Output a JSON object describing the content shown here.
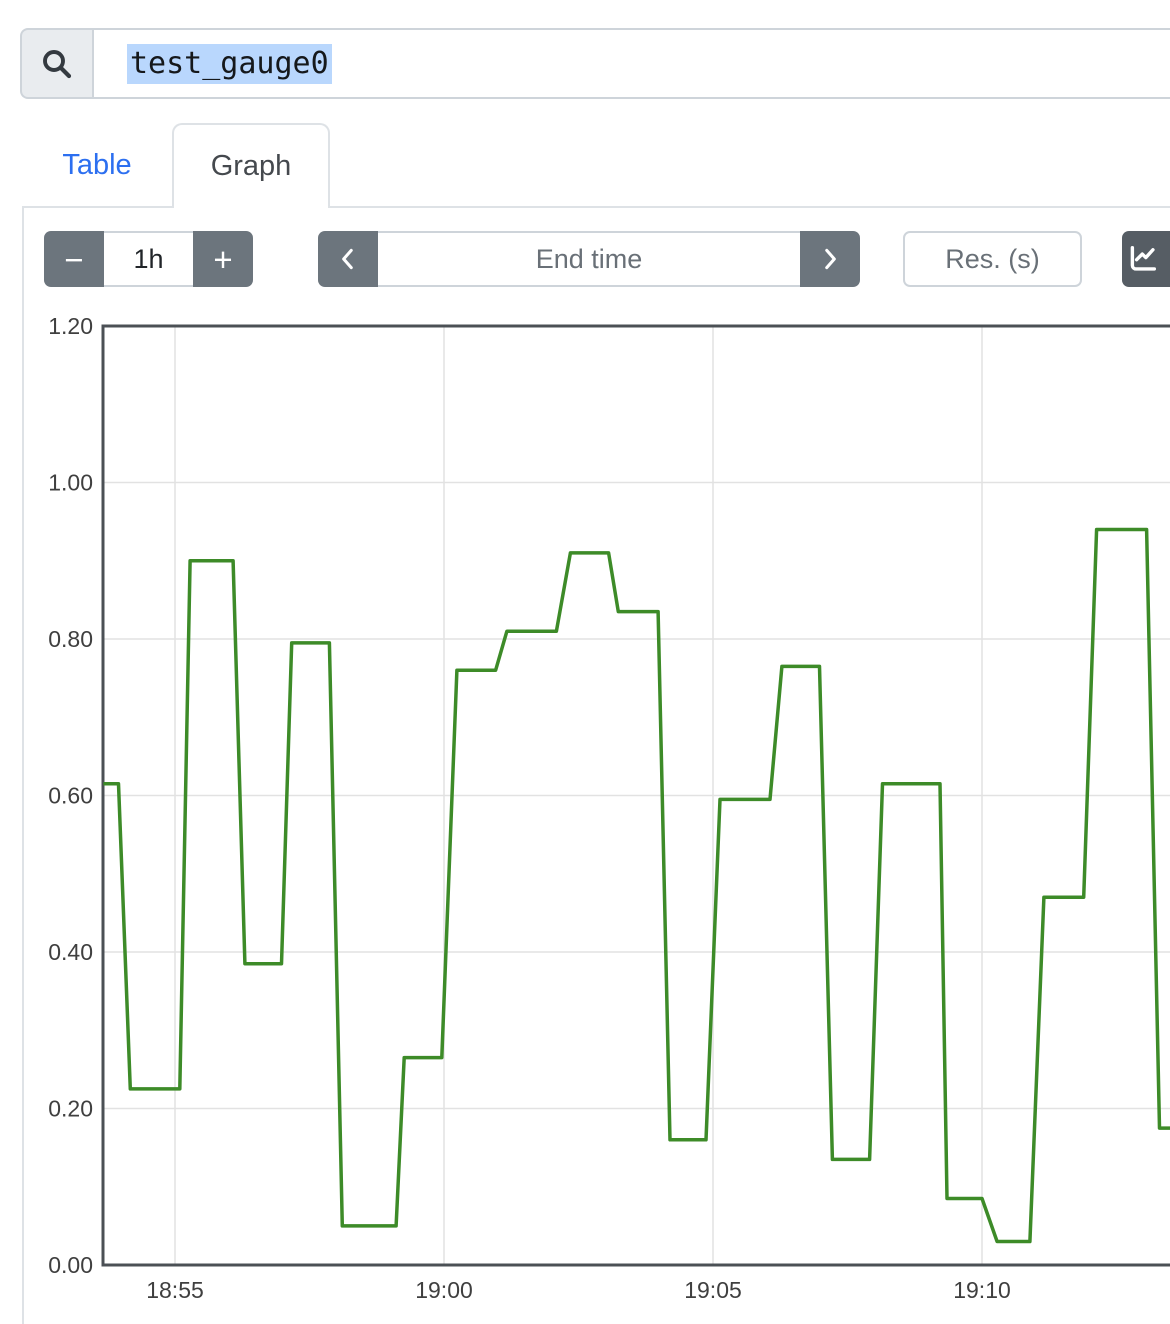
{
  "search": {
    "value": "test_gauge0",
    "icon": "magnifier",
    "selection_color": "#b9d7fd"
  },
  "tabs": [
    {
      "label": "Table",
      "active": false
    },
    {
      "label": "Graph",
      "active": true
    }
  ],
  "toolbar": {
    "range_group": {
      "decrease_label": "−",
      "value": "1h",
      "increase_label": "+"
    },
    "time_group": {
      "prev_icon": "chevron-left",
      "placeholder": "End time",
      "next_icon": "chevron-right"
    },
    "res_input": {
      "placeholder": "Res. (s)"
    },
    "chart_button_icon": "line-chart"
  },
  "colors": {
    "link_blue": "#2c6ff0",
    "button_gray": "#6c757d",
    "button_dark": "#565d64",
    "series_green": "#3d8b28",
    "input_border": "#ced4da",
    "panel_border": "#dee2e6",
    "grid_line": "#e2e2e2",
    "axis_frame": "#4b5055",
    "tick_text": "#3f3f3f",
    "selection_blue": "#b9d7fd"
  },
  "chart_data": {
    "type": "line",
    "title": "",
    "xlabel": "",
    "ylabel": "",
    "grid": true,
    "legend_position": "none",
    "ylim": [
      0.0,
      1.2
    ],
    "x_unit": "minutes_after_18:50",
    "xlim": [
      3.67,
      23.6
    ],
    "y_ticks": [
      {
        "v": 0.0,
        "label": "0.00"
      },
      {
        "v": 0.2,
        "label": "0.20"
      },
      {
        "v": 0.4,
        "label": "0.40"
      },
      {
        "v": 0.6,
        "label": "0.60"
      },
      {
        "v": 0.8,
        "label": "0.80"
      },
      {
        "v": 1.0,
        "label": "1.00"
      },
      {
        "v": 1.2,
        "label": "1.20"
      }
    ],
    "x_ticks": [
      {
        "t": 5,
        "label": "18:55"
      },
      {
        "t": 10,
        "label": "19:00"
      },
      {
        "t": 15,
        "label": "19:05"
      },
      {
        "t": 20,
        "label": "19:10"
      }
    ],
    "series": [
      {
        "name": "test_gauge0",
        "color": "#3d8b28",
        "points": [
          [
            3.67,
            0.615
          ],
          [
            3.95,
            0.615
          ],
          [
            4.17,
            0.225
          ],
          [
            5.09,
            0.225
          ],
          [
            5.28,
            0.9
          ],
          [
            6.08,
            0.9
          ],
          [
            6.3,
            0.385
          ],
          [
            6.98,
            0.385
          ],
          [
            7.17,
            0.795
          ],
          [
            7.87,
            0.795
          ],
          [
            8.11,
            0.05
          ],
          [
            9.11,
            0.05
          ],
          [
            9.26,
            0.265
          ],
          [
            9.96,
            0.265
          ],
          [
            10.24,
            0.76
          ],
          [
            10.96,
            0.76
          ],
          [
            11.17,
            0.81
          ],
          [
            12.09,
            0.81
          ],
          [
            12.35,
            0.91
          ],
          [
            13.06,
            0.91
          ],
          [
            13.24,
            0.835
          ],
          [
            13.98,
            0.835
          ],
          [
            14.2,
            0.16
          ],
          [
            14.87,
            0.16
          ],
          [
            15.13,
            0.595
          ],
          [
            16.06,
            0.595
          ],
          [
            16.28,
            0.765
          ],
          [
            16.98,
            0.765
          ],
          [
            17.22,
            0.135
          ],
          [
            17.91,
            0.135
          ],
          [
            18.15,
            0.615
          ],
          [
            19.22,
            0.615
          ],
          [
            19.35,
            0.085
          ],
          [
            20.0,
            0.085
          ],
          [
            20.28,
            0.03
          ],
          [
            20.89,
            0.03
          ],
          [
            21.15,
            0.47
          ],
          [
            21.89,
            0.47
          ],
          [
            22.13,
            0.94
          ],
          [
            23.06,
            0.94
          ],
          [
            23.3,
            0.175
          ],
          [
            23.6,
            0.175
          ]
        ]
      }
    ]
  }
}
